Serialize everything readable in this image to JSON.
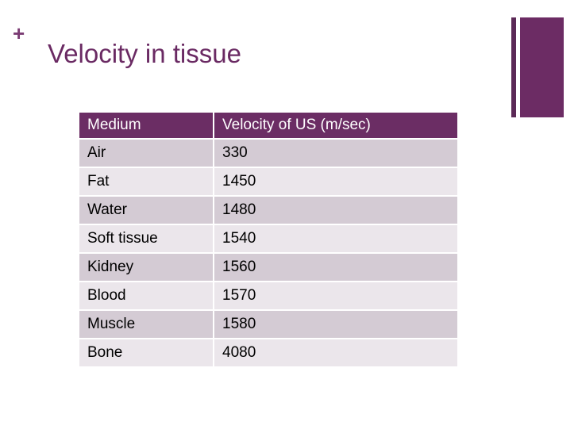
{
  "slide": {
    "plus_mark": "+",
    "title": "Velocity in tissue"
  },
  "table": {
    "headers": [
      "Medium",
      "Velocity of US (m/sec)"
    ],
    "rows": [
      [
        "Air",
        "330"
      ],
      [
        "Fat",
        "1450"
      ],
      [
        "Water",
        "1480"
      ],
      [
        "Soft tissue",
        "1540"
      ],
      [
        "Kidney",
        "1560"
      ],
      [
        "Blood",
        "1570"
      ],
      [
        "Muscle",
        "1580"
      ],
      [
        "Bone",
        "4080"
      ]
    ]
  },
  "colors": {
    "accent": "#6c2c64",
    "title": "#6a2a63",
    "header_bg": "#6b2d64",
    "row_odd_bg": "#d4cbd4",
    "row_even_bg": "#ebe6eb"
  }
}
